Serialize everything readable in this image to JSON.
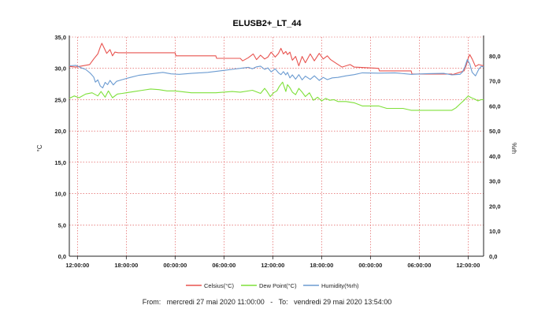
{
  "chart_data": {
    "type": "line",
    "title": "ELUSB2+_LT_44",
    "xlabel": "",
    "ylabel": "°C",
    "y2label": "%rh",
    "ylim": [
      0,
      35
    ],
    "y2lim": [
      0,
      87.5
    ],
    "yticks": [
      "0,0",
      "5,0",
      "10,0",
      "15,0",
      "20,0",
      "25,0",
      "30,0",
      "35,0"
    ],
    "y2ticks": [
      "0,0",
      "10,0",
      "20,0",
      "30,0",
      "40,0",
      "50,0",
      "60,0",
      "70,0",
      "80,0"
    ],
    "xlim": [
      0,
      50.9
    ],
    "xticks": [
      {
        "t": 1,
        "label": "12:00:00"
      },
      {
        "t": 7,
        "label": "18:00:00"
      },
      {
        "t": 13,
        "label": "00:00:00"
      },
      {
        "t": 19,
        "label": "06:00:00"
      },
      {
        "t": 25,
        "label": "12:00:00"
      },
      {
        "t": 31,
        "label": "18:00:00"
      },
      {
        "t": 37,
        "label": "00:00:00"
      },
      {
        "t": 43,
        "label": "06:00:00"
      },
      {
        "t": 49,
        "label": "12:00:00"
      }
    ],
    "grid": true,
    "legend_position": "bottom",
    "series": [
      {
        "name": "Celsius(°C)",
        "axis": "left",
        "color": "#e8534f",
        "x": [
          0,
          0.8,
          1.2,
          2.5,
          3,
          3.5,
          3.8,
          4,
          4.3,
          4.6,
          5,
          5.3,
          5.6,
          6,
          13,
          13.1,
          18,
          18.1,
          21,
          21.3,
          22,
          22.6,
          23,
          23.5,
          24,
          24.4,
          24.8,
          25.3,
          25.7,
          26,
          26.3,
          26.6,
          26.8,
          27.1,
          27.4,
          27.8,
          28.2,
          28.6,
          29,
          29.6,
          30.1,
          30.7,
          31.2,
          31.7,
          32.1,
          32.8,
          33.5,
          34.5,
          35,
          38,
          38.1,
          42,
          42.1,
          47,
          47.1,
          48.5,
          48.8,
          49,
          49.2,
          49.5,
          49.9,
          50.3,
          50.9
        ],
        "y": [
          30.3,
          30.2,
          30.3,
          30.6,
          31.5,
          32.3,
          33.4,
          34,
          33.2,
          32.4,
          33,
          32,
          32.6,
          32.5,
          32.5,
          32,
          32,
          31.6,
          31.6,
          31.2,
          31.7,
          32.3,
          31.4,
          32.1,
          31.5,
          31.8,
          32.6,
          31.8,
          32.4,
          33.2,
          32.3,
          32.7,
          32.2,
          32.6,
          31.3,
          31.9,
          30.4,
          31.9,
          30.9,
          32.3,
          31.2,
          32.4,
          31.5,
          32,
          31.4,
          30.8,
          30.2,
          30.6,
          30.2,
          30,
          29.6,
          29.6,
          29.1,
          29.1,
          29,
          29.6,
          30.6,
          31.6,
          32.2,
          31.5,
          30.3,
          30.6,
          30.4
        ]
      },
      {
        "name": "Dew Point(°C)",
        "axis": "left",
        "color": "#7fe03a",
        "x": [
          0,
          0.6,
          1.2,
          2,
          2.8,
          3.5,
          3.9,
          4.4,
          4.8,
          5.3,
          5.9,
          6.5,
          7,
          8,
          9,
          10,
          11,
          12,
          13,
          15,
          18,
          20,
          21,
          22.5,
          23.5,
          24,
          24.3,
          24.7,
          25.1,
          25.5,
          25.8,
          26.2,
          26.6,
          26.8,
          27.1,
          27.4,
          27.8,
          28.2,
          28.6,
          29,
          29.5,
          30,
          30.5,
          31,
          31.5,
          32,
          32.5,
          33,
          34,
          35,
          36,
          38,
          39,
          41,
          42,
          43,
          44,
          47,
          47.5,
          48,
          48.5,
          49,
          49.4,
          49.8,
          50.2,
          50.6,
          50.9
        ],
        "y": [
          25.2,
          25.6,
          25.3,
          25.9,
          26.1,
          25.6,
          26.3,
          25.4,
          26.4,
          25.3,
          25.9,
          26,
          26.1,
          26.3,
          26.5,
          26.7,
          26.6,
          26.4,
          26.4,
          26.1,
          26.1,
          26.3,
          26.2,
          26.5,
          26,
          26.8,
          26.3,
          25.5,
          26.1,
          26.4,
          27.1,
          27.8,
          26.3,
          27.4,
          26.9,
          26.2,
          25.8,
          26.8,
          26.2,
          25.5,
          26.1,
          24.9,
          25.4,
          24.8,
          25.2,
          24.9,
          25,
          24.7,
          24.7,
          24.5,
          24,
          24,
          23.6,
          23.6,
          23.3,
          23.3,
          23.3,
          23.3,
          23.7,
          24.3,
          24.9,
          25.6,
          25.3,
          25.1,
          24.8,
          25,
          25
        ]
      },
      {
        "name": "Humidity(%rh)",
        "axis": "right",
        "color": "#6b9bd1",
        "x": [
          0,
          0.8,
          1.4,
          2,
          2.6,
          3,
          3.2,
          3.5,
          3.8,
          4.1,
          4.4,
          4.7,
          5,
          5.4,
          5.8,
          6.5,
          7.5,
          8.5,
          9.5,
          10.5,
          11.5,
          12.5,
          13.5,
          15,
          17,
          19,
          20,
          21,
          22,
          22.5,
          23,
          23.5,
          24,
          24.4,
          24.8,
          25.3,
          25.7,
          26,
          26.3,
          26.6,
          26.8,
          27.1,
          27.4,
          27.8,
          28.2,
          28.6,
          29,
          29.6,
          30.1,
          30.7,
          31.2,
          31.7,
          32.3,
          33,
          34,
          35,
          36,
          38,
          40,
          42,
          44,
          46,
          47,
          48,
          48.3,
          48.6,
          48.9,
          49.2,
          49.5,
          49.9,
          50.3,
          50.6,
          50.9
        ],
        "y": [
          76,
          76.2,
          75.3,
          74.6,
          73,
          71.5,
          69.5,
          70.4,
          68,
          67.2,
          69.4,
          68.5,
          70.2,
          68.4,
          69.8,
          70.5,
          71.4,
          72.2,
          72.6,
          73,
          73.4,
          72.8,
          72.6,
          73,
          73.4,
          74.2,
          74.6,
          75,
          75.4,
          74.8,
          75.6,
          75.9,
          74.6,
          75.2,
          73.6,
          74.8,
          73.2,
          72.5,
          73.7,
          72.4,
          73.4,
          71.2,
          72.4,
          70.7,
          72.5,
          70.4,
          71.9,
          70.6,
          72,
          70.2,
          71.4,
          70.5,
          71.2,
          71.4,
          72,
          72.5,
          73.2,
          73.1,
          73.2,
          72.6,
          72.9,
          73,
          72.4,
          72.6,
          73.5,
          75.6,
          78.5,
          76.8,
          73.4,
          72,
          74.6,
          75.8,
          75.6
        ]
      }
    ]
  },
  "footer": {
    "from_label": "From:",
    "from_value": "mercredi 27 mai 2020 11:00:00",
    "to_label": "To:",
    "to_value": "vendredi 29 mai 2020 13:54:00"
  }
}
